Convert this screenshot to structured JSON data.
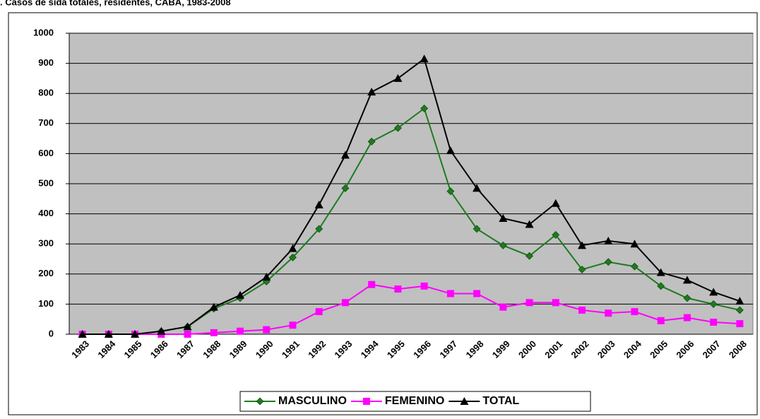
{
  "chart_data": {
    "type": "line",
    "title": ". Casos de sida totales, residentes, CABA, 1983-2008",
    "categories": [
      "1983",
      "1984",
      "1985",
      "1986",
      "1987",
      "1988",
      "1989",
      "1990",
      "1991",
      "1992",
      "1993",
      "1994",
      "1995",
      "1996",
      "1997",
      "1998",
      "1999",
      "2000",
      "2001",
      "2002",
      "2003",
      "2004",
      "2005",
      "2006",
      "2007",
      "2008"
    ],
    "series": [
      {
        "name": "MASCULINO",
        "color": "#1e7b1e",
        "marker": "diamond",
        "values": [
          0,
          0,
          0,
          10,
          25,
          85,
          120,
          175,
          255,
          350,
          485,
          640,
          685,
          750,
          475,
          350,
          295,
          260,
          330,
          215,
          240,
          225,
          160,
          120,
          100,
          80
        ]
      },
      {
        "name": "FEMENINO",
        "color": "#ff00ff",
        "marker": "square",
        "values": [
          0,
          0,
          0,
          0,
          0,
          5,
          10,
          15,
          30,
          75,
          105,
          165,
          150,
          160,
          135,
          135,
          90,
          105,
          105,
          80,
          70,
          75,
          45,
          55,
          40,
          35
        ]
      },
      {
        "name": "TOTAL",
        "color": "#000000",
        "marker": "triangle",
        "values": [
          0,
          0,
          0,
          10,
          25,
          90,
          130,
          190,
          285,
          430,
          595,
          805,
          850,
          915,
          610,
          485,
          385,
          365,
          435,
          295,
          310,
          300,
          205,
          180,
          140,
          110
        ]
      }
    ],
    "ylim": [
      0,
      1000
    ],
    "yticks": [
      0,
      100,
      200,
      300,
      400,
      500,
      600,
      700,
      800,
      900,
      1000
    ],
    "grid": true,
    "legend": "bottom"
  }
}
